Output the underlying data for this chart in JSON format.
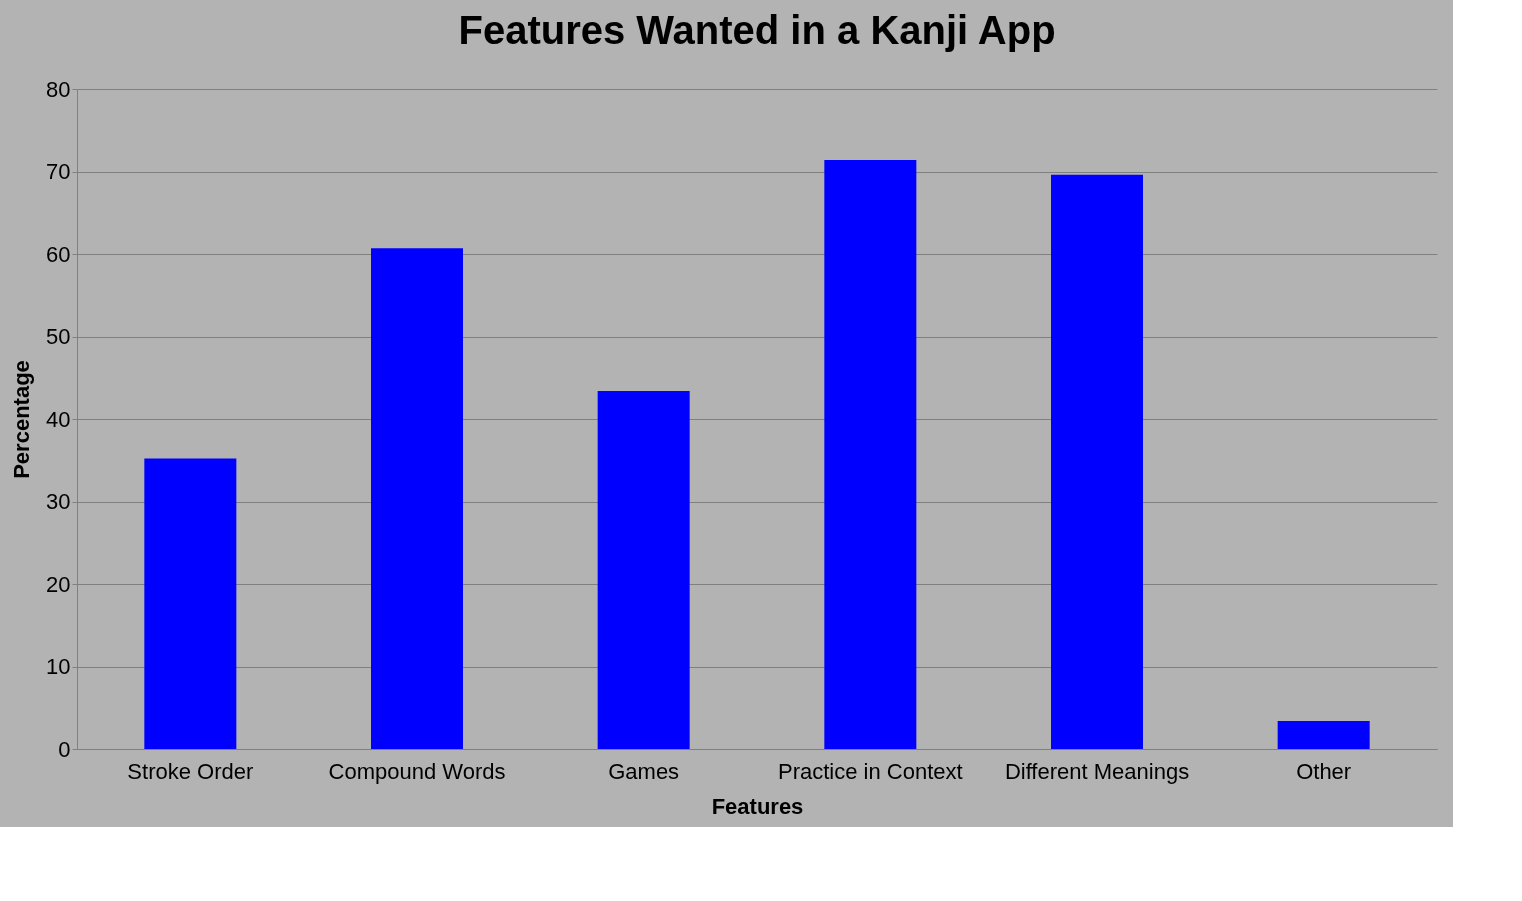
{
  "chart_data": {
    "type": "bar",
    "title": "Features Wanted in a Kanji App",
    "xlabel": "Features",
    "ylabel": "Percentage",
    "categories": [
      "Stroke Order",
      "Compound Words",
      "Games",
      "Practice in Context",
      "Different Meanings",
      "Other"
    ],
    "values": [
      35.2,
      60.7,
      43.4,
      71.4,
      69.6,
      3.4
    ],
    "color": "#0000ff",
    "ylim": [
      0,
      80
    ],
    "yticks": [
      0,
      10,
      20,
      30,
      40,
      50,
      60,
      70,
      80
    ],
    "grid": "y"
  }
}
